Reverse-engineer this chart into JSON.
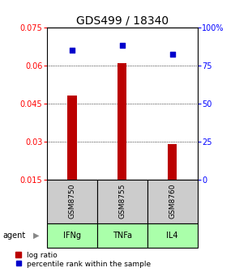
{
  "title": "GDS499 / 18340",
  "samples": [
    "GSM8750",
    "GSM8755",
    "GSM8760"
  ],
  "agents": [
    "IFNg",
    "TNFa",
    "IL4"
  ],
  "log_ratio": [
    0.048,
    0.061,
    0.029
  ],
  "percentile_rank": [
    85,
    88,
    82
  ],
  "ylim_left": [
    0.015,
    0.075
  ],
  "ylim_right": [
    0,
    100
  ],
  "yticks_left": [
    0.015,
    0.03,
    0.045,
    0.06,
    0.075
  ],
  "yticks_right": [
    0,
    25,
    50,
    75,
    100
  ],
  "ytick_labels_right": [
    "0",
    "25",
    "50",
    "75",
    "100%"
  ],
  "bar_color": "#bb0000",
  "scatter_color": "#0000cc",
  "agent_color": "#aaffaa",
  "sample_color": "#cccccc",
  "bar_width": 0.18,
  "title_fontsize": 10,
  "tick_fontsize": 7,
  "legend_fontsize": 6.5,
  "agent_label": "agent"
}
